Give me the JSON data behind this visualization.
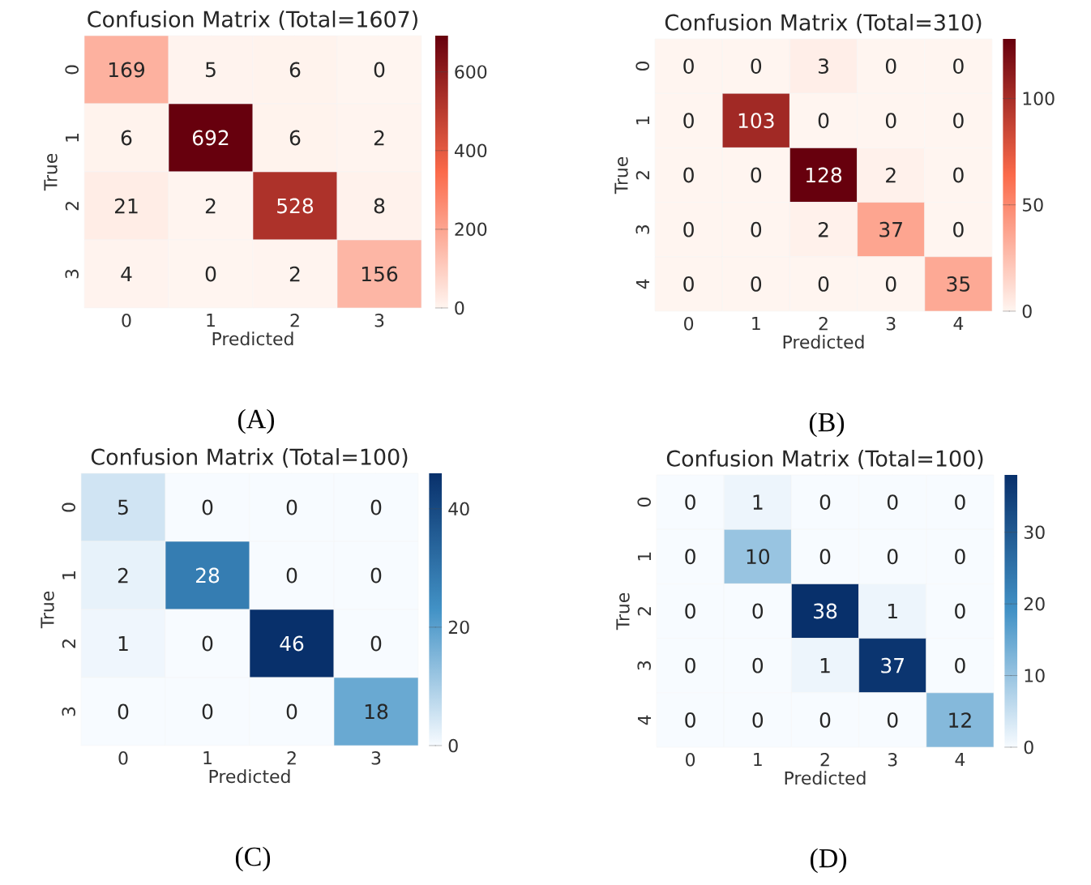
{
  "chart_data": [
    {
      "type": "heatmap",
      "title": "Confusion Matrix (Total=1607)",
      "xlabel": "Predicted",
      "ylabel": "True",
      "categories": [
        "0",
        "1",
        "2",
        "3"
      ],
      "y_categories": [
        "0",
        "1",
        "2",
        "3"
      ],
      "cells": [
        [
          169,
          5,
          6,
          0
        ],
        [
          6,
          692,
          6,
          2
        ],
        [
          21,
          2,
          528,
          8
        ],
        [
          4,
          0,
          2,
          156
        ]
      ],
      "clim": [
        0,
        692
      ],
      "cticks": [
        0,
        200,
        400,
        600
      ],
      "colors": [
        "#fff5f0",
        "#fb6a4a",
        "#67000d"
      ],
      "data_labels": true,
      "annotations": [
        "(A)"
      ]
    },
    {
      "type": "heatmap",
      "title": "Confusion Matrix (Total=310)",
      "xlabel": "Predicted",
      "ylabel": "True",
      "categories": [
        "0",
        "1",
        "2",
        "3",
        "4"
      ],
      "y_categories": [
        "0",
        "1",
        "2",
        "3",
        "4"
      ],
      "cells": [
        [
          0,
          0,
          3,
          0,
          0
        ],
        [
          0,
          103,
          0,
          0,
          0
        ],
        [
          0,
          0,
          128,
          2,
          0
        ],
        [
          0,
          0,
          2,
          37,
          0
        ],
        [
          0,
          0,
          0,
          0,
          35
        ]
      ],
      "clim": [
        0,
        128
      ],
      "cticks": [
        0,
        50,
        100
      ],
      "colors": [
        "#fff5f0",
        "#fb6a4a",
        "#67000d"
      ],
      "data_labels": true,
      "annotations": [
        "(B)"
      ]
    },
    {
      "type": "heatmap",
      "title": "Confusion Matrix (Total=100)",
      "xlabel": "Predicted",
      "ylabel": "True",
      "categories": [
        "0",
        "1",
        "2",
        "3"
      ],
      "y_categories": [
        "0",
        "1",
        "2",
        "3"
      ],
      "cells": [
        [
          5,
          0,
          0,
          0
        ],
        [
          2,
          28,
          0,
          0
        ],
        [
          1,
          0,
          46,
          0
        ],
        [
          0,
          0,
          0,
          18
        ]
      ],
      "clim": [
        0,
        46
      ],
      "cticks": [
        0,
        20,
        40
      ],
      "colors": [
        "#f7fbff",
        "#4292c6",
        "#08306b"
      ],
      "data_labels": true,
      "annotations": [
        "(C)"
      ]
    },
    {
      "type": "heatmap",
      "title": "Confusion Matrix (Total=100)",
      "xlabel": "Predicted",
      "ylabel": "True",
      "categories": [
        "0",
        "1",
        "2",
        "3",
        "4"
      ],
      "y_categories": [
        "0",
        "1",
        "2",
        "3",
        "4"
      ],
      "cells": [
        [
          0,
          1,
          0,
          0,
          0
        ],
        [
          0,
          10,
          0,
          0,
          0
        ],
        [
          0,
          0,
          38,
          1,
          0
        ],
        [
          0,
          0,
          1,
          37,
          0
        ],
        [
          0,
          0,
          0,
          0,
          12
        ]
      ],
      "clim": [
        0,
        38
      ],
      "cticks": [
        0,
        10,
        20,
        30
      ],
      "colors": [
        "#f7fbff",
        "#4292c6",
        "#08306b"
      ],
      "data_labels": true,
      "annotations": [
        "(D)"
      ]
    }
  ]
}
